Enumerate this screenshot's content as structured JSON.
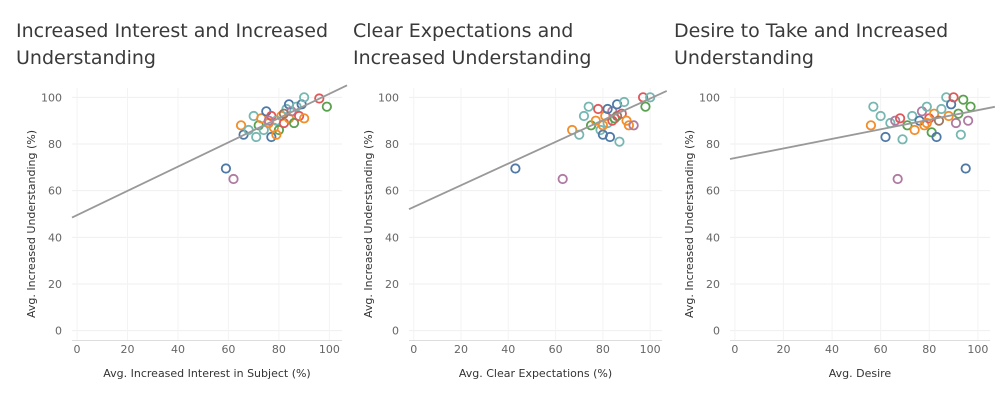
{
  "palette": [
    "#4e79a7",
    "#f28e2b",
    "#e15759",
    "#76b7b2",
    "#59a14f",
    "#af7aa1",
    "#ff9da7",
    "#9c755f"
  ],
  "chart_data": [
    {
      "type": "scatter",
      "title": "Increased Interest and Increased Understanding",
      "xlabel": "Avg. Increased Interest in Subject (%)",
      "ylabel": "Avg. Increased Understanding (%)",
      "xlim": [
        -2,
        105
      ],
      "ylim": [
        -4,
        104
      ],
      "xticks": [
        0,
        20,
        40,
        60,
        80,
        100
      ],
      "yticks": [
        0,
        20,
        40,
        60,
        80,
        100
      ],
      "grid": true,
      "trendline": {
        "intercept": 49.5,
        "slope": 0.52,
        "color": "#999999"
      },
      "points": [
        {
          "x": 59,
          "y": 69.5,
          "c": 0
        },
        {
          "x": 62,
          "y": 65,
          "c": 5
        },
        {
          "x": 66,
          "y": 84,
          "c": 0
        },
        {
          "x": 65,
          "y": 88,
          "c": 1
        },
        {
          "x": 68,
          "y": 86,
          "c": 3
        },
        {
          "x": 70,
          "y": 92,
          "c": 3
        },
        {
          "x": 71,
          "y": 83,
          "c": 3
        },
        {
          "x": 72,
          "y": 88,
          "c": 4
        },
        {
          "x": 73,
          "y": 91,
          "c": 1
        },
        {
          "x": 74,
          "y": 86,
          "c": 3
        },
        {
          "x": 75,
          "y": 94,
          "c": 0
        },
        {
          "x": 76,
          "y": 89,
          "c": 1
        },
        {
          "x": 77,
          "y": 83,
          "c": 0
        },
        {
          "x": 77,
          "y": 92,
          "c": 2
        },
        {
          "x": 78,
          "y": 87,
          "c": 1
        },
        {
          "x": 79,
          "y": 90,
          "c": 3
        },
        {
          "x": 80,
          "y": 86,
          "c": 4
        },
        {
          "x": 81,
          "y": 92,
          "c": 1
        },
        {
          "x": 82,
          "y": 89,
          "c": 2
        },
        {
          "x": 83,
          "y": 95,
          "c": 3
        },
        {
          "x": 84,
          "y": 97,
          "c": 0
        },
        {
          "x": 84,
          "y": 91,
          "c": 1
        },
        {
          "x": 85,
          "y": 94,
          "c": 5
        },
        {
          "x": 86,
          "y": 89,
          "c": 4
        },
        {
          "x": 87,
          "y": 96,
          "c": 3
        },
        {
          "x": 88,
          "y": 92,
          "c": 2
        },
        {
          "x": 89,
          "y": 97,
          "c": 0
        },
        {
          "x": 90,
          "y": 100,
          "c": 3
        },
        {
          "x": 90,
          "y": 91,
          "c": 1
        },
        {
          "x": 96,
          "y": 99.5,
          "c": 2
        },
        {
          "x": 99,
          "y": 96,
          "c": 4
        },
        {
          "x": 79,
          "y": 84,
          "c": 1
        },
        {
          "x": 76,
          "y": 90,
          "c": 5
        },
        {
          "x": 82,
          "y": 93,
          "c": 7
        }
      ]
    },
    {
      "type": "scatter",
      "title": "Clear Expectations and Increased Understanding",
      "xlabel": "Avg. Clear Expectations (%)",
      "ylabel": "Avg. Increased Understanding (%)",
      "xlim": [
        -2,
        105
      ],
      "ylim": [
        -4,
        104
      ],
      "xticks": [
        0,
        20,
        40,
        60,
        80,
        100
      ],
      "yticks": [
        0,
        20,
        40,
        60,
        80,
        100
      ],
      "grid": true,
      "trendline": {
        "intercept": 53,
        "slope": 0.465,
        "color": "#999999"
      },
      "points": [
        {
          "x": 43,
          "y": 69.5,
          "c": 0
        },
        {
          "x": 63,
          "y": 65,
          "c": 5
        },
        {
          "x": 67,
          "y": 86,
          "c": 1
        },
        {
          "x": 70,
          "y": 84,
          "c": 3
        },
        {
          "x": 72,
          "y": 92,
          "c": 3
        },
        {
          "x": 74,
          "y": 96,
          "c": 3
        },
        {
          "x": 75,
          "y": 88,
          "c": 4
        },
        {
          "x": 77,
          "y": 90,
          "c": 1
        },
        {
          "x": 78,
          "y": 95,
          "c": 2
        },
        {
          "x": 79,
          "y": 86,
          "c": 3
        },
        {
          "x": 80,
          "y": 84,
          "c": 0
        },
        {
          "x": 81,
          "y": 92,
          "c": 1
        },
        {
          "x": 82,
          "y": 89,
          "c": 3
        },
        {
          "x": 83,
          "y": 83,
          "c": 0
        },
        {
          "x": 84,
          "y": 94,
          "c": 5
        },
        {
          "x": 85,
          "y": 91,
          "c": 4
        },
        {
          "x": 86,
          "y": 97,
          "c": 0
        },
        {
          "x": 87,
          "y": 81,
          "c": 3
        },
        {
          "x": 88,
          "y": 93,
          "c": 2
        },
        {
          "x": 89,
          "y": 98,
          "c": 3
        },
        {
          "x": 90,
          "y": 90,
          "c": 1
        },
        {
          "x": 91,
          "y": 88,
          "c": 1
        },
        {
          "x": 93,
          "y": 88,
          "c": 5
        },
        {
          "x": 97,
          "y": 100,
          "c": 2
        },
        {
          "x": 98,
          "y": 96,
          "c": 4
        },
        {
          "x": 100,
          "y": 100,
          "c": 3
        },
        {
          "x": 80,
          "y": 88,
          "c": 1
        },
        {
          "x": 84,
          "y": 90,
          "c": 2
        },
        {
          "x": 86,
          "y": 92,
          "c": 7
        },
        {
          "x": 82,
          "y": 95,
          "c": 0
        }
      ]
    },
    {
      "type": "scatter",
      "title": "Desire to Take and Increased Understanding",
      "xlabel": "Avg. Desire",
      "ylabel": "Avg. Increased Understanding (%)",
      "xlim": [
        -2,
        105
      ],
      "ylim": [
        -4,
        104
      ],
      "xticks": [
        0,
        20,
        40,
        60,
        80,
        100
      ],
      "yticks": [
        0,
        20,
        40,
        60,
        80,
        100
      ],
      "grid": true,
      "trendline": {
        "intercept": 74,
        "slope": 0.205,
        "color": "#999999"
      },
      "points": [
        {
          "x": 56,
          "y": 88,
          "c": 1
        },
        {
          "x": 57,
          "y": 96,
          "c": 3
        },
        {
          "x": 60,
          "y": 92,
          "c": 3
        },
        {
          "x": 62,
          "y": 83,
          "c": 0
        },
        {
          "x": 64,
          "y": 89,
          "c": 3
        },
        {
          "x": 66,
          "y": 90,
          "c": 5
        },
        {
          "x": 67,
          "y": 65,
          "c": 5
        },
        {
          "x": 68,
          "y": 91,
          "c": 2
        },
        {
          "x": 69,
          "y": 82,
          "c": 3
        },
        {
          "x": 71,
          "y": 88,
          "c": 4
        },
        {
          "x": 73,
          "y": 92,
          "c": 3
        },
        {
          "x": 74,
          "y": 86,
          "c": 1
        },
        {
          "x": 76,
          "y": 90,
          "c": 0
        },
        {
          "x": 77,
          "y": 94,
          "c": 5
        },
        {
          "x": 78,
          "y": 88,
          "c": 1
        },
        {
          "x": 79,
          "y": 96,
          "c": 3
        },
        {
          "x": 80,
          "y": 91,
          "c": 2
        },
        {
          "x": 81,
          "y": 85,
          "c": 4
        },
        {
          "x": 82,
          "y": 93,
          "c": 1
        },
        {
          "x": 83,
          "y": 83,
          "c": 0
        },
        {
          "x": 85,
          "y": 95,
          "c": 3
        },
        {
          "x": 87,
          "y": 100,
          "c": 3
        },
        {
          "x": 88,
          "y": 92,
          "c": 1
        },
        {
          "x": 89,
          "y": 97,
          "c": 0
        },
        {
          "x": 90,
          "y": 100,
          "c": 2
        },
        {
          "x": 91,
          "y": 89,
          "c": 5
        },
        {
          "x": 92,
          "y": 93,
          "c": 4
        },
        {
          "x": 93,
          "y": 84,
          "c": 3
        },
        {
          "x": 94,
          "y": 99,
          "c": 4
        },
        {
          "x": 95,
          "y": 69.5,
          "c": 0
        },
        {
          "x": 96,
          "y": 90,
          "c": 5
        },
        {
          "x": 97,
          "y": 96,
          "c": 4
        },
        {
          "x": 84,
          "y": 90,
          "c": 7
        },
        {
          "x": 79,
          "y": 89,
          "c": 1
        }
      ]
    }
  ]
}
